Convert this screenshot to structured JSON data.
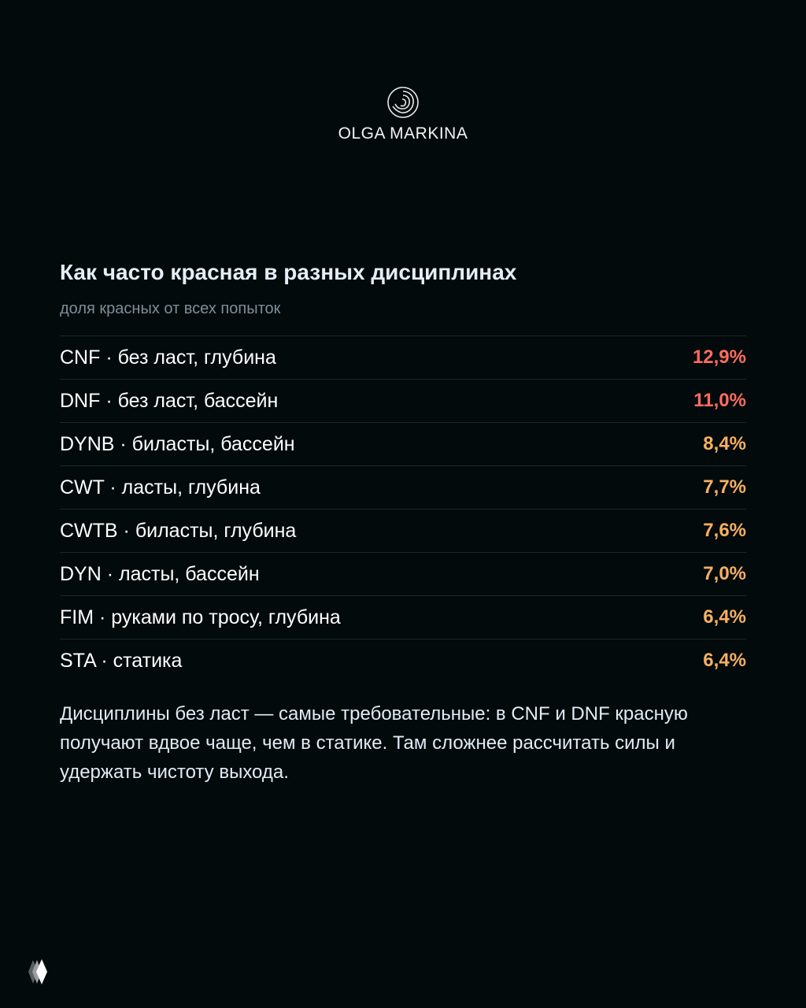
{
  "brand": {
    "logo_icon": "swirl-logo-icon",
    "name": "OLGA MARKINA"
  },
  "title": "Как часто красная в разных дисциплинах",
  "subtitle": "доля красных от всех попыток",
  "colors": {
    "high": "#ff6b5f",
    "medium": "#f6b062"
  },
  "disciplines": [
    {
      "label": "CNF · без ласт, глубина",
      "value": "12,9%",
      "level": "high"
    },
    {
      "label": "DNF · без ласт, бассейн",
      "value": "11,0%",
      "level": "high"
    },
    {
      "label": "DYNB · биласты, бассейн",
      "value": "8,4%",
      "level": "medium"
    },
    {
      "label": "CWT · ласты, глубина",
      "value": "7,7%",
      "level": "medium"
    },
    {
      "label": "CWTB · биласты, глубина",
      "value": "7,6%",
      "level": "medium"
    },
    {
      "label": "DYN · ласты, бассейн",
      "value": "7,0%",
      "level": "medium"
    },
    {
      "label": "FIM · руками по тросу, глубина",
      "value": "6,4%",
      "level": "medium"
    },
    {
      "label": "STA · статика",
      "value": "6,4%",
      "level": "medium"
    }
  ],
  "note": "Дисциплины без ласт — самые требовательные: в CNF и DNF красную получают вдвое чаще, чем в статике. Там сложнее рассчитать силы и удержать чистоту выхода.",
  "corner_icon": "layered-diamond-icon"
}
